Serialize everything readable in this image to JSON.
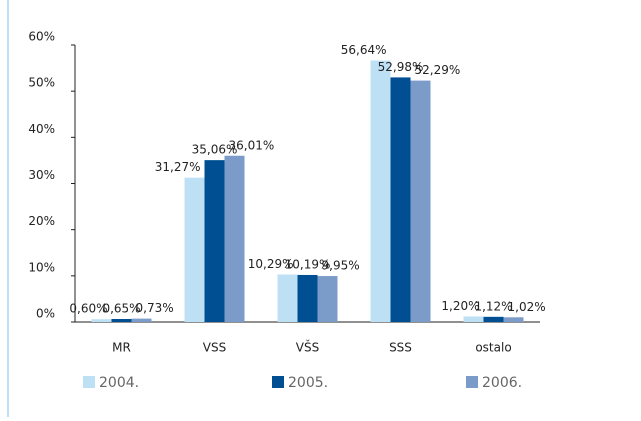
{
  "chart_data": {
    "type": "bar",
    "categories": [
      "MR",
      "VSS",
      "VŠS",
      "SSS",
      "ostalo"
    ],
    "series": [
      {
        "name": "2004.",
        "color": "#bde0f5",
        "values": [
          0.6,
          31.27,
          10.29,
          56.64,
          1.2
        ],
        "value_labels": [
          "0,60%",
          "31,27%",
          "10,29%",
          "56,64%",
          "1,20%"
        ]
      },
      {
        "name": "2005.",
        "color": "#004f93",
        "values": [
          0.65,
          35.06,
          10.19,
          52.98,
          1.12
        ],
        "value_labels": [
          "0,65%",
          "35,06%",
          "10,19%",
          "52,98%",
          "1,12%"
        ]
      },
      {
        "name": "2006.",
        "color": "#7b9cc9",
        "values": [
          0.73,
          36.01,
          9.95,
          52.29,
          1.02
        ],
        "value_labels": [
          "0,73%",
          "36,01%",
          "9,95%",
          "52,29%",
          "1,02%"
        ]
      }
    ],
    "ylim": [
      0,
      60
    ],
    "yticks": [
      {
        "value": 0,
        "label": "0%"
      },
      {
        "value": 10,
        "label": "10%"
      },
      {
        "value": 20,
        "label": "20%"
      },
      {
        "value": 30,
        "label": "30%"
      },
      {
        "value": 40,
        "label": "40%"
      },
      {
        "value": 50,
        "label": "50%"
      },
      {
        "value": 60,
        "label": "60%"
      }
    ],
    "grid": false,
    "legend": "bottom"
  }
}
